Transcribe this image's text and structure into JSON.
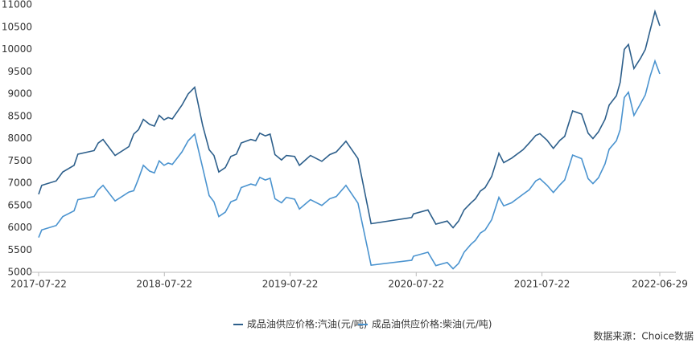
{
  "chart_data": {
    "type": "line",
    "x": [
      "2017-07-22",
      "2017-07-31",
      "2017-09-11",
      "2017-09-30",
      "2017-11-02",
      "2017-11-13",
      "2017-12-30",
      "2018-01-11",
      "2018-01-25",
      "2018-03-01",
      "2018-04-10",
      "2018-04-24",
      "2018-05-08",
      "2018-05-22",
      "2018-06-09",
      "2018-06-23",
      "2018-07-07",
      "2018-07-21",
      "2018-08-02",
      "2018-08-14",
      "2018-09-11",
      "2018-09-29",
      "2018-10-18",
      "2018-11-10",
      "2018-11-29",
      "2018-12-13",
      "2018-12-27",
      "2019-01-15",
      "2019-01-31",
      "2019-02-16",
      "2019-03-02",
      "2019-03-30",
      "2019-04-13",
      "2019-04-25",
      "2019-05-11",
      "2019-05-25",
      "2019-06-08",
      "2019-06-27",
      "2019-07-11",
      "2019-08-04",
      "2019-08-18",
      "2019-09-19",
      "2019-10-22",
      "2019-11-14",
      "2019-12-03",
      "2019-12-31",
      "2020-02-04",
      "2020-03-13",
      "2020-07-09",
      "2020-07-14",
      "2020-08-25",
      "2020-09-17",
      "2020-10-20",
      "2020-11-06",
      "2020-11-22",
      "2020-12-08",
      "2020-12-27",
      "2021-01-10",
      "2021-01-24",
      "2021-02-07",
      "2021-02-26",
      "2021-03-19",
      "2021-04-02",
      "2021-04-25",
      "2021-05-28",
      "2021-06-15",
      "2021-07-04",
      "2021-07-16",
      "2021-08-06",
      "2021-08-24",
      "2021-09-12",
      "2021-09-26",
      "2021-10-19",
      "2021-11-14",
      "2021-12-03",
      "2021-12-17",
      "2022-01-02",
      "2022-01-21",
      "2022-02-02",
      "2022-02-23",
      "2022-03-06",
      "2022-03-18",
      "2022-03-30",
      "2022-04-15",
      "2022-05-04",
      "2022-05-18",
      "2022-06-01",
      "2022-06-15",
      "2022-06-29"
    ],
    "series": [
      {
        "name": "成品油供应价格:汽油(元/吨)",
        "color": "#2d5f8b",
        "values": [
          6750,
          6950,
          7050,
          7250,
          7400,
          7650,
          7730,
          7900,
          7980,
          7620,
          7820,
          8100,
          8200,
          8430,
          8320,
          8280,
          8520,
          8420,
          8470,
          8440,
          8750,
          9000,
          9150,
          8300,
          7750,
          7620,
          7250,
          7350,
          7600,
          7650,
          7900,
          7980,
          7950,
          8120,
          8060,
          8100,
          7640,
          7520,
          7620,
          7600,
          7400,
          7620,
          7490,
          7640,
          7700,
          7940,
          7550,
          6090,
          6230,
          6310,
          6400,
          6080,
          6150,
          6000,
          6150,
          6400,
          6550,
          6650,
          6820,
          6900,
          7150,
          7670,
          7460,
          7560,
          7750,
          7900,
          8070,
          8110,
          7960,
          7780,
          7960,
          8050,
          8620,
          8550,
          8120,
          8000,
          8150,
          8430,
          8750,
          8960,
          9260,
          10000,
          10110,
          9570,
          9800,
          10000,
          10430,
          10850,
          10530
        ]
      },
      {
        "name": "成品油供应价格:柴油(元/吨)",
        "color": "#4a93cf",
        "values": [
          5780,
          5950,
          6050,
          6250,
          6380,
          6630,
          6700,
          6850,
          6950,
          6600,
          6800,
          6830,
          7100,
          7400,
          7270,
          7230,
          7500,
          7400,
          7450,
          7420,
          7700,
          7950,
          8100,
          7350,
          6720,
          6580,
          6250,
          6350,
          6580,
          6630,
          6900,
          6980,
          6950,
          7130,
          7070,
          7110,
          6650,
          6560,
          6680,
          6640,
          6420,
          6630,
          6500,
          6650,
          6700,
          6950,
          6550,
          5160,
          5270,
          5360,
          5450,
          5150,
          5220,
          5080,
          5200,
          5450,
          5620,
          5720,
          5880,
          5950,
          6180,
          6680,
          6490,
          6560,
          6750,
          6850,
          7050,
          7100,
          6950,
          6790,
          6960,
          7070,
          7630,
          7550,
          7100,
          6990,
          7120,
          7430,
          7760,
          7950,
          8200,
          8920,
          9040,
          8520,
          8780,
          8980,
          9400,
          9740,
          9450
        ]
      }
    ],
    "xlim": [
      "2017-07-22",
      "2022-06-29"
    ],
    "xticks": [
      "2017-07-22",
      "2018-07-22",
      "2019-07-22",
      "2020-07-22",
      "2021-07-22",
      "2022-06-29"
    ],
    "ylim": [
      5000,
      11000
    ],
    "yticks": [
      5000,
      5500,
      6000,
      6500,
      7000,
      7500,
      8000,
      8500,
      9000,
      9500,
      10000,
      10500,
      11000
    ],
    "legend": "bottom",
    "source": "数据来源：Choice数据"
  }
}
